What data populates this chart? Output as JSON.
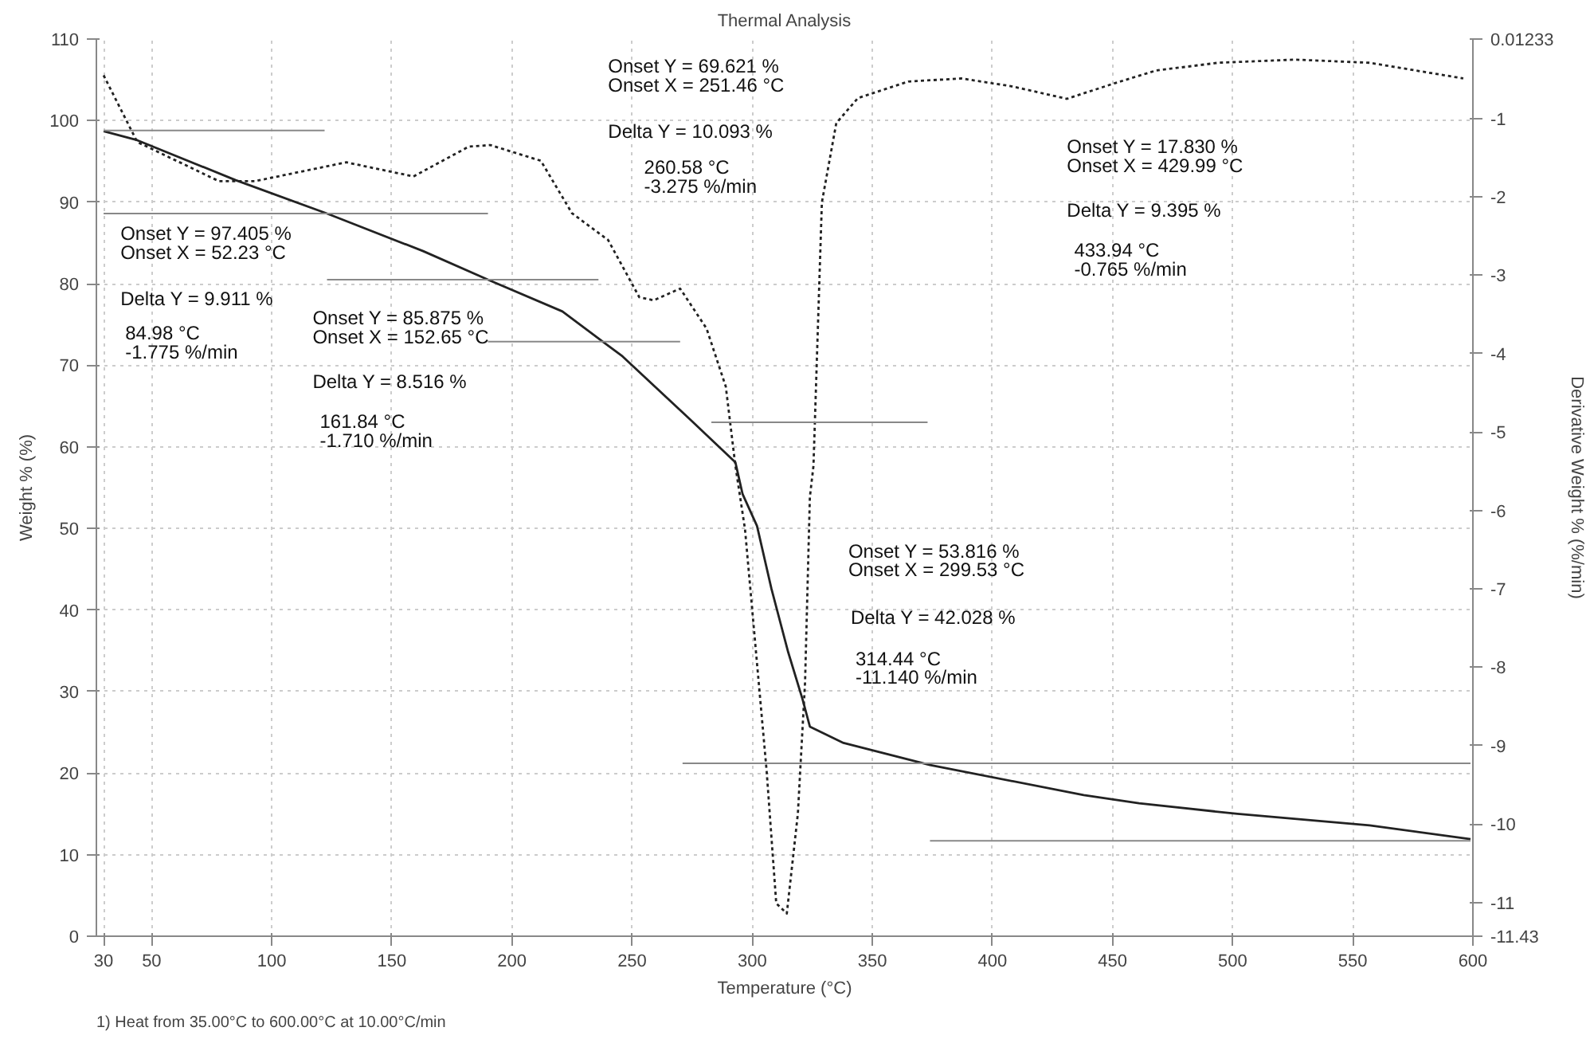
{
  "chart_data": {
    "type": "line",
    "title": "Thermal Analysis",
    "xlabel": "Temperature (°C)",
    "ylabel": "Weight % (%)",
    "y2label": "Derivative Weight % (%/min)",
    "xlim": [
      27,
      600
    ],
    "xticks": [
      30,
      50,
      100,
      150,
      200,
      250,
      300,
      350,
      400,
      450,
      500,
      550,
      600
    ],
    "ylim": [
      0,
      110
    ],
    "yticks": [
      0,
      10,
      20,
      30,
      40,
      50,
      60,
      70,
      80,
      90,
      100,
      110
    ],
    "y2lim": [
      -11.43,
      0.01233
    ],
    "y2ticks": [
      0.01233,
      -1,
      -2,
      -3,
      -4,
      -5,
      -6,
      -7,
      -8,
      -9,
      -10,
      -11,
      -11.43
    ],
    "grid": true,
    "series": [
      {
        "color": "#222222",
        "line_style": "solid",
        "x": [
          30,
          44,
          85,
          123,
          163,
          190,
          221,
          246,
          274,
          293,
          296,
          302,
          308,
          315,
          321,
          324,
          338,
          374,
          438,
          461,
          502,
          557,
          599
        ],
        "values": [
          98.7,
          97.6,
          92.7,
          88.6,
          84.0,
          80.5,
          76.6,
          71.1,
          63.4,
          58.1,
          54.2,
          50.3,
          42.6,
          34.8,
          29.0,
          25.7,
          23.7,
          21.0,
          17.3,
          16.3,
          15.0,
          13.6,
          11.9
        ]
      },
      {
        "color": "#222222",
        "line_style": "dotted",
        "axis": "y2",
        "x": [
          30,
          44,
          78,
          93,
          131,
          159,
          182,
          191,
          212,
          225,
          240,
          253,
          259,
          270,
          281,
          289,
          293,
          297,
          306,
          310,
          314.4,
          319,
          322,
          324,
          325.5,
          329,
          335,
          344,
          365,
          387,
          408,
          431,
          451,
          468,
          494,
          526,
          557,
          596
        ],
        "values": [
          -0.45,
          -1.3,
          -1.8,
          -1.8,
          -1.56,
          -1.74,
          -1.36,
          -1.34,
          -1.54,
          -2.21,
          -2.55,
          -3.28,
          -3.32,
          -3.17,
          -3.68,
          -4.42,
          -5.43,
          -6.24,
          -9.32,
          -11.01,
          -11.14,
          -9.87,
          -8.19,
          -5.83,
          -5.43,
          -2.07,
          -1.06,
          -0.74,
          -0.53,
          -0.49,
          -0.59,
          -0.75,
          -0.55,
          -0.39,
          -0.29,
          -0.25,
          -0.29,
          -0.49
        ]
      },
      {
        "color": "#888888",
        "line_style": "solid",
        "x": [
          30,
          122
        ],
        "values": [
          98.8,
          98.8
        ]
      },
      {
        "color": "#888888",
        "line_style": "solid",
        "x": [
          30,
          190
        ],
        "values": [
          88.6,
          88.6
        ]
      },
      {
        "color": "#888888",
        "line_style": "solid",
        "x": [
          123,
          236
        ],
        "values": [
          80.5,
          80.5
        ]
      },
      {
        "color": "#888888",
        "line_style": "solid",
        "x": [
          190,
          270
        ],
        "values": [
          72.9,
          72.9
        ]
      },
      {
        "color": "#888888",
        "line_style": "solid",
        "x": [
          283,
          373
        ],
        "values": [
          63.0,
          63.0
        ]
      },
      {
        "color": "#888888",
        "line_style": "solid",
        "x": [
          271,
          599
        ],
        "values": [
          21.2,
          21.2
        ]
      },
      {
        "color": "#888888",
        "line_style": "solid",
        "x": [
          374,
          599
        ],
        "values": [
          11.7,
          11.7
        ]
      }
    ],
    "annotations": [
      "Onset Y = 97.405 %\nOnset X = 52.23 °C",
      "Delta Y = 9.911 %",
      "84.98 °C\n-1.775 %/min",
      "Onset Y = 85.875 %\nOnset X = 152.65 °C",
      "Delta Y = 8.516 %",
      "161.84 °C\n-1.710 %/min",
      "Onset Y = 69.621 %\nOnset X = 251.46 °C",
      "Delta Y = 10.093 %",
      "260.58 °C\n-3.275 %/min",
      "Onset Y = 17.830 %\nOnset X = 429.99 °C",
      "Delta Y = 9.395 %",
      "433.94 °C\n-0.765 %/min",
      "Onset Y = 53.816 %\nOnset X = 299.53 °C",
      "Delta Y = 42.028 %",
      "314.44 °C\n-11.140 %/min",
      "1)  Heat from 35.00°C to 600.00°C at 10.00°C/min"
    ]
  }
}
